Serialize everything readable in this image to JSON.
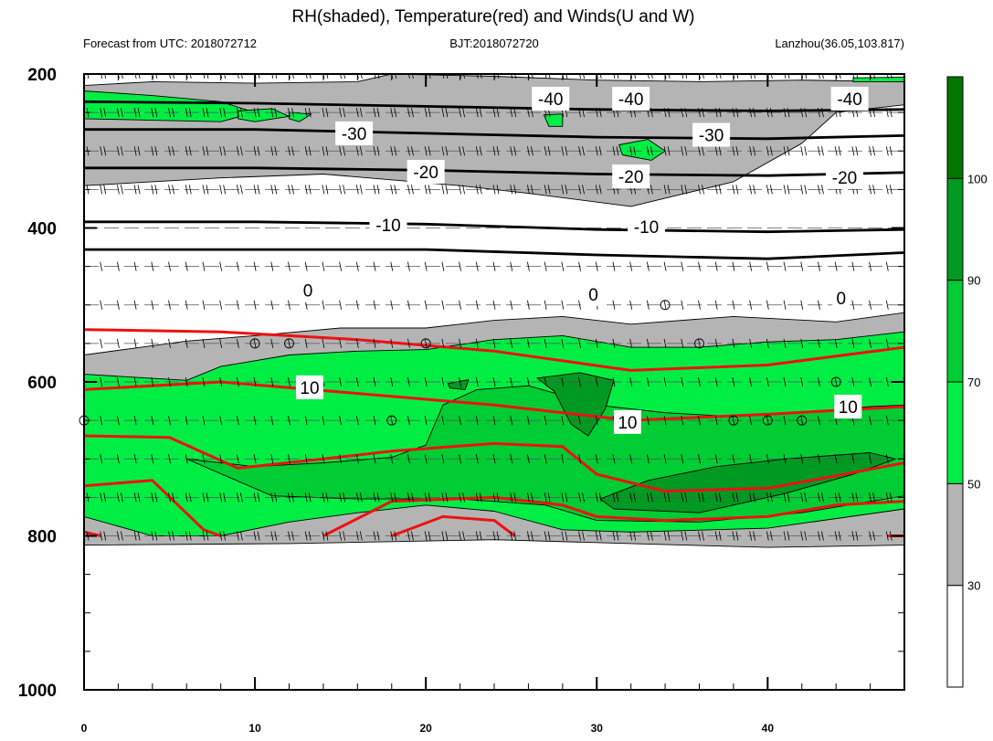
{
  "chart_data": {
    "type": "heatmap",
    "title": "RH(shaded), Temperature(red) and Winds(U and W)",
    "subtitle_left": "Forecast from UTC: 2018072712",
    "subtitle_center": "BJT:2018072720",
    "subtitle_right": "Lanzhou(36.05,103.817)",
    "xlim": [
      0,
      48
    ],
    "ylim": [
      200,
      1000
    ],
    "y_reversed": true,
    "xticks": [
      0,
      10,
      20,
      30,
      40
    ],
    "yticks": [
      200,
      400,
      600,
      800,
      1000
    ],
    "grid_levels": [
      200,
      250,
      300,
      350,
      400,
      450,
      500,
      550,
      600,
      650,
      700,
      750,
      800
    ],
    "colorbar": {
      "levels": [
        30,
        50,
        70,
        90,
        100
      ],
      "colors": [
        "#ffffff",
        "#b4b4b4",
        "#00ee44",
        "#00cc33",
        "#009922",
        "#007700"
      ],
      "placement": "right"
    },
    "rh_fields": [
      {
        "class": "gray",
        "name": "upper-dry-layer",
        "points": [
          [
            0,
            215
          ],
          [
            4,
            210
          ],
          [
            10,
            212
          ],
          [
            16,
            210
          ],
          [
            18,
            200
          ],
          [
            24,
            203
          ],
          [
            30,
            208
          ],
          [
            36,
            210
          ],
          [
            42,
            208
          ],
          [
            48,
            210
          ],
          [
            48,
            240
          ],
          [
            44,
            250
          ],
          [
            42,
            290
          ],
          [
            38,
            340
          ],
          [
            32,
            372
          ],
          [
            26,
            355
          ],
          [
            22,
            345
          ],
          [
            14,
            330
          ],
          [
            8,
            335
          ],
          [
            0,
            345
          ]
        ]
      },
      {
        "class": "light",
        "name": "upper-moist-1",
        "points": [
          [
            0,
            222
          ],
          [
            4,
            228
          ],
          [
            8,
            236
          ],
          [
            10,
            250
          ],
          [
            8,
            262
          ],
          [
            0,
            258
          ]
        ]
      },
      {
        "class": "light",
        "name": "upper-moist-2",
        "points": [
          [
            9,
            248
          ],
          [
            11,
            245
          ],
          [
            12,
            255
          ],
          [
            10,
            262
          ],
          [
            9,
            258
          ]
        ]
      },
      {
        "class": "light",
        "name": "upper-moist-3",
        "points": [
          [
            12,
            250
          ],
          [
            13.3,
            252
          ],
          [
            12.6,
            262
          ],
          [
            12,
            258
          ]
        ]
      },
      {
        "class": "light",
        "name": "upper-moist-4",
        "points": [
          [
            26.9,
            253
          ],
          [
            28,
            252
          ],
          [
            28,
            268
          ],
          [
            27.2,
            268
          ]
        ]
      },
      {
        "class": "light",
        "name": "upper-moist-5",
        "points": [
          [
            31.3,
            292
          ],
          [
            33,
            285
          ],
          [
            34,
            300
          ],
          [
            33.2,
            312
          ],
          [
            31.5,
            305
          ]
        ]
      },
      {
        "class": "light",
        "name": "upper-moist-6",
        "points": [
          [
            45,
            205
          ],
          [
            48,
            204
          ],
          [
            48,
            210
          ],
          [
            45,
            210
          ]
        ]
      },
      {
        "class": "gray",
        "name": "lower-cloud-layer",
        "points": [
          [
            0,
            565
          ],
          [
            6,
            547
          ],
          [
            10,
            540
          ],
          [
            15,
            530
          ],
          [
            20,
            530
          ],
          [
            24,
            520
          ],
          [
            28,
            515
          ],
          [
            32,
            525
          ],
          [
            38,
            515
          ],
          [
            44,
            522
          ],
          [
            48,
            510
          ],
          [
            48,
            812
          ],
          [
            40,
            815
          ],
          [
            32,
            810
          ],
          [
            24,
            805
          ],
          [
            12,
            810
          ],
          [
            0,
            812
          ]
        ]
      },
      {
        "class": "light",
        "name": "lower-moist-core",
        "points": [
          [
            0,
            590
          ],
          [
            6,
            598
          ],
          [
            8,
            580
          ],
          [
            12,
            565
          ],
          [
            16,
            560
          ],
          [
            20,
            558
          ],
          [
            24,
            545
          ],
          [
            28,
            540
          ],
          [
            32,
            555
          ],
          [
            36,
            555
          ],
          [
            40,
            548
          ],
          [
            44,
            545
          ],
          [
            48,
            535
          ],
          [
            48,
            765
          ],
          [
            40,
            790
          ],
          [
            32,
            795
          ],
          [
            28,
            792
          ],
          [
            24,
            768
          ],
          [
            20,
            760
          ],
          [
            16,
            770
          ],
          [
            12,
            782
          ],
          [
            8,
            800
          ],
          [
            4,
            800
          ],
          [
            0,
            775
          ]
        ]
      },
      {
        "class": "mid",
        "name": "lower-moist-band",
        "points": [
          [
            6,
            700
          ],
          [
            10,
            710
          ],
          [
            14,
            705
          ],
          [
            18,
            698
          ],
          [
            20,
            682
          ],
          [
            21,
            630
          ],
          [
            23,
            610
          ],
          [
            26,
            605
          ],
          [
            30,
            630
          ],
          [
            34,
            640
          ],
          [
            38,
            645
          ],
          [
            42,
            640
          ],
          [
            46,
            632
          ],
          [
            48,
            630
          ],
          [
            48,
            748
          ],
          [
            42,
            770
          ],
          [
            36,
            782
          ],
          [
            30,
            780
          ],
          [
            27,
            760
          ],
          [
            22,
            752
          ],
          [
            16,
            752
          ],
          [
            11,
            748
          ]
        ]
      },
      {
        "class": "dark",
        "name": "moist-cell-1",
        "points": [
          [
            26.5,
            595
          ],
          [
            29,
            588
          ],
          [
            31,
            598
          ],
          [
            30.5,
            635
          ],
          [
            29.5,
            670
          ],
          [
            28.5,
            655
          ],
          [
            27.5,
            612
          ]
        ]
      },
      {
        "class": "dark",
        "name": "moist-cell-2",
        "points": [
          [
            30.2,
            752
          ],
          [
            33,
            728
          ],
          [
            37,
            710
          ],
          [
            41,
            700
          ],
          [
            46,
            692
          ],
          [
            47.5,
            700
          ],
          [
            45,
            720
          ],
          [
            41,
            745
          ],
          [
            36,
            770
          ],
          [
            31,
            765
          ]
        ]
      },
      {
        "class": "dark",
        "name": "moist-cell-3",
        "points": [
          [
            21.3,
            602
          ],
          [
            22.5,
            597
          ],
          [
            22.3,
            610
          ],
          [
            21.4,
            608
          ]
        ]
      }
    ],
    "temperature_isotherms": [
      {
        "points": [
          [
            0,
            532
          ],
          [
            8,
            535
          ],
          [
            16,
            545
          ],
          [
            24,
            560
          ],
          [
            32,
            585
          ],
          [
            40,
            578
          ],
          [
            48,
            555
          ]
        ]
      },
      {
        "points": [
          [
            0,
            610
          ],
          [
            8,
            600
          ],
          [
            16,
            615
          ],
          [
            24,
            630
          ],
          [
            32,
            650
          ],
          [
            40,
            642
          ],
          [
            48,
            632
          ]
        ]
      },
      {
        "points": [
          [
            0,
            670
          ],
          [
            5,
            672
          ],
          [
            9,
            712
          ],
          [
            14,
            700
          ],
          [
            18,
            690
          ],
          [
            24,
            680
          ],
          [
            28,
            684
          ],
          [
            30,
            720
          ],
          [
            34,
            742
          ],
          [
            40,
            738
          ],
          [
            44,
            722
          ],
          [
            48,
            705
          ]
        ]
      },
      {
        "points": [
          [
            0,
            735
          ],
          [
            4,
            728
          ],
          [
            7,
            792
          ],
          [
            8,
            800
          ]
        ]
      },
      {
        "points": [
          [
            14,
            800
          ],
          [
            18,
            755
          ],
          [
            24,
            750
          ],
          [
            28,
            760
          ],
          [
            30,
            775
          ],
          [
            34,
            780
          ],
          [
            40,
            775
          ],
          [
            44,
            760
          ],
          [
            48,
            755
          ]
        ]
      },
      {
        "points": [
          [
            18,
            800
          ],
          [
            21,
            775
          ],
          [
            24,
            780
          ],
          [
            25.2,
            800
          ]
        ]
      },
      {
        "points": [
          [
            0,
            795
          ],
          [
            1,
            800
          ]
        ]
      },
      {
        "points": [
          [
            47,
            800
          ],
          [
            48,
            800
          ]
        ]
      }
    ],
    "upper_isotherms": [
      {
        "value": -40,
        "points": [
          [
            0,
            236
          ],
          [
            10,
            238
          ],
          [
            20,
            242
          ],
          [
            30,
            246
          ],
          [
            40,
            248
          ],
          [
            48,
            246
          ]
        ]
      },
      {
        "value": -30,
        "points": [
          [
            0,
            272
          ],
          [
            10,
            272
          ],
          [
            20,
            277
          ],
          [
            30,
            282
          ],
          [
            40,
            284
          ],
          [
            48,
            280
          ]
        ]
      },
      {
        "value": -20,
        "points": [
          [
            0,
            322
          ],
          [
            10,
            322
          ],
          [
            20,
            325
          ],
          [
            30,
            330
          ],
          [
            40,
            332
          ],
          [
            48,
            328
          ]
        ]
      },
      {
        "value": -10,
        "points": [
          [
            0,
            392
          ],
          [
            10,
            392
          ],
          [
            20,
            395
          ],
          [
            30,
            402
          ],
          [
            40,
            405
          ],
          [
            48,
            402
          ]
        ]
      },
      {
        "value": 0,
        "points": [
          [
            0,
            428
          ],
          [
            10,
            428
          ],
          [
            20,
            428
          ],
          [
            30,
            435
          ],
          [
            40,
            440
          ],
          [
            48,
            432
          ]
        ]
      }
    ],
    "contour_labels": [
      {
        "text": "-40",
        "x": 27.3,
        "y": 232
      },
      {
        "text": "-40",
        "x": 32.0,
        "y": 232
      },
      {
        "text": "-40",
        "x": 44.8,
        "y": 232
      },
      {
        "text": "-30",
        "x": 15.8,
        "y": 277
      },
      {
        "text": "-30",
        "x": 36.7,
        "y": 279
      },
      {
        "text": "-20",
        "x": 20.0,
        "y": 327
      },
      {
        "text": "-20",
        "x": 32.0,
        "y": 333
      },
      {
        "text": "-20",
        "x": 44.5,
        "y": 334
      },
      {
        "text": "-10",
        "x": 17.8,
        "y": 396
      },
      {
        "text": "-10",
        "x": 32.9,
        "y": 398
      },
      {
        "text": "0",
        "x": 13.1,
        "y": 481
      },
      {
        "text": "0",
        "x": 29.8,
        "y": 486
      },
      {
        "text": "0",
        "x": 44.3,
        "y": 491
      },
      {
        "text": "10",
        "x": 13.2,
        "y": 607
      },
      {
        "text": "10",
        "x": 31.8,
        "y": 652
      },
      {
        "text": "10",
        "x": 44.7,
        "y": 632
      }
    ],
    "calm_circles": [
      [
        0,
        650
      ],
      [
        10,
        550
      ],
      [
        12,
        550
      ],
      [
        18,
        650
      ],
      [
        20,
        550
      ],
      [
        34,
        500
      ],
      [
        36,
        550
      ],
      [
        38,
        650
      ],
      [
        40,
        650
      ],
      [
        42,
        650
      ],
      [
        44,
        600
      ]
    ],
    "wind_rows": [
      200,
      250,
      300,
      350,
      450,
      500,
      550,
      600,
      650,
      700,
      750,
      800
    ]
  }
}
